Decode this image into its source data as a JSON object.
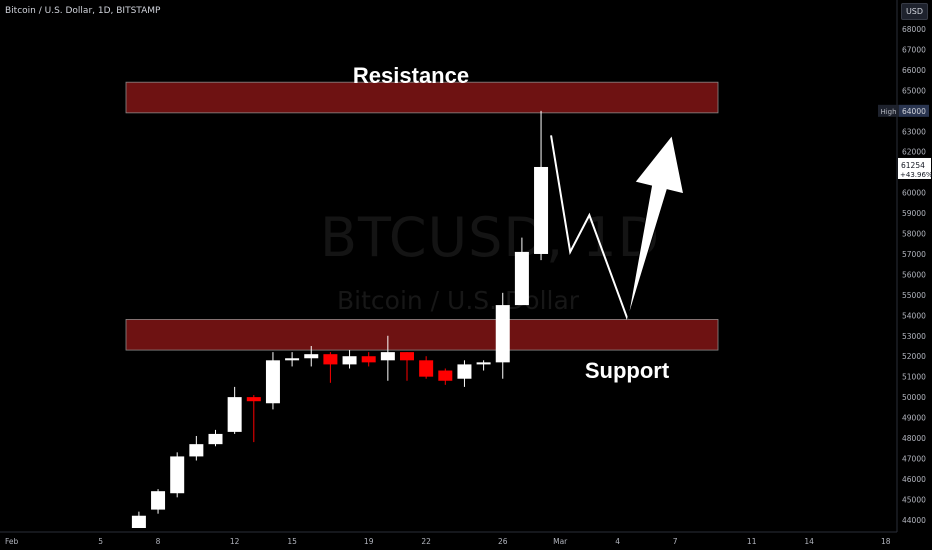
{
  "header": {
    "symbol_title": "Bitcoin / U.S. Dollar, 1D, BITSTAMP",
    "currency_label": "USD"
  },
  "watermark": {
    "symbol": "BTCUSD, 1D",
    "description": "Bitcoin / U.S. Dollar"
  },
  "annotations": {
    "resistance_label": "Resistance",
    "support_label": "Support",
    "resistance_zone": [
      63900,
      65400
    ],
    "support_zone": [
      52300,
      53800
    ],
    "zone_color": "#6e1212",
    "projection_path": [
      {
        "date": "2021-02-28",
        "price": 62800
      },
      {
        "date": "2021-03-01",
        "price": 57100
      },
      {
        "date": "2021-03-02",
        "price": 58900
      },
      {
        "date": "2021-03-04",
        "price": 53800
      }
    ],
    "arrow": {
      "from": {
        "date": "2021-03-04",
        "price": 53800
      },
      "to": {
        "date": "2021-03-06",
        "price": 62800
      }
    }
  },
  "price_scale": {
    "high_tag_label": "High",
    "high_tag_value": "64000",
    "last_price": "61254",
    "last_change": "+43.96%"
  },
  "chart_data": {
    "type": "candlestick",
    "title": "Bitcoin / U.S. Dollar, 1D, BITSTAMP",
    "ylim": [
      43600,
      69000
    ],
    "y_ticks": [
      44000,
      45000,
      46000,
      47000,
      48000,
      49000,
      50000,
      51000,
      52000,
      53000,
      54000,
      55000,
      56000,
      57000,
      58000,
      59000,
      60000,
      61000,
      62000,
      63000,
      64000,
      65000,
      66000,
      67000,
      68000
    ],
    "x_ticks": [
      {
        "label": "Feb",
        "date": "2021-02-01"
      },
      {
        "label": "5",
        "date": "2021-02-05"
      },
      {
        "label": "8",
        "date": "2021-02-08"
      },
      {
        "label": "12",
        "date": "2021-02-12"
      },
      {
        "label": "15",
        "date": "2021-02-15"
      },
      {
        "label": "19",
        "date": "2021-02-19"
      },
      {
        "label": "22",
        "date": "2021-02-22"
      },
      {
        "label": "26",
        "date": "2021-02-26"
      },
      {
        "label": "Mar",
        "date": "2021-03-01"
      },
      {
        "label": "4",
        "date": "2021-03-04"
      },
      {
        "label": "7",
        "date": "2021-03-07"
      },
      {
        "label": "11",
        "date": "2021-03-11"
      },
      {
        "label": "14",
        "date": "2021-03-14"
      },
      {
        "label": "18",
        "date": "2021-03-18"
      }
    ],
    "xlim": [
      "2021-02-01",
      "2021-03-18"
    ],
    "candles": [
      {
        "date": "2021-02-07",
        "open": 43600,
        "high": 44400,
        "low": 43600,
        "close": 44200
      },
      {
        "date": "2021-02-08",
        "open": 44500,
        "high": 45500,
        "low": 44300,
        "close": 45400
      },
      {
        "date": "2021-02-09",
        "open": 45300,
        "high": 47300,
        "low": 45100,
        "close": 47100
      },
      {
        "date": "2021-02-10",
        "open": 47100,
        "high": 48100,
        "low": 46900,
        "close": 47700
      },
      {
        "date": "2021-02-11",
        "open": 47700,
        "high": 48400,
        "low": 47600,
        "close": 48200
      },
      {
        "date": "2021-02-12",
        "open": 48300,
        "high": 50500,
        "low": 48200,
        "close": 50000
      },
      {
        "date": "2021-02-13",
        "open": 50000,
        "high": 50100,
        "low": 47800,
        "close": 49800
      },
      {
        "date": "2021-02-14",
        "open": 49700,
        "high": 52200,
        "low": 49400,
        "close": 51800
      },
      {
        "date": "2021-02-15",
        "open": 51800,
        "high": 52200,
        "low": 51500,
        "close": 51900
      },
      {
        "date": "2021-02-16",
        "open": 51900,
        "high": 52500,
        "low": 51500,
        "close": 52100
      },
      {
        "date": "2021-02-17",
        "open": 52100,
        "high": 52200,
        "low": 50700,
        "close": 51600
      },
      {
        "date": "2021-02-18",
        "open": 51600,
        "high": 52300,
        "low": 51400,
        "close": 52000
      },
      {
        "date": "2021-02-19",
        "open": 52000,
        "high": 52200,
        "low": 51500,
        "close": 51700
      },
      {
        "date": "2021-02-20",
        "open": 51800,
        "high": 53000,
        "low": 50800,
        "close": 52200
      },
      {
        "date": "2021-02-21",
        "open": 52200,
        "high": 52200,
        "low": 50800,
        "close": 51800
      },
      {
        "date": "2021-02-22",
        "open": 51800,
        "high": 52000,
        "low": 50900,
        "close": 51000
      },
      {
        "date": "2021-02-23",
        "open": 51300,
        "high": 51400,
        "low": 50600,
        "close": 50800
      },
      {
        "date": "2021-02-24",
        "open": 50900,
        "high": 51800,
        "low": 50500,
        "close": 51600
      },
      {
        "date": "2021-02-25",
        "open": 51600,
        "high": 51800,
        "low": 51300,
        "close": 51700
      },
      {
        "date": "2021-02-26",
        "open": 51700,
        "high": 55100,
        "low": 50900,
        "close": 54500
      },
      {
        "date": "2021-02-27",
        "open": 54500,
        "high": 57800,
        "low": 54500,
        "close": 57100
      },
      {
        "date": "2021-02-28",
        "open": 57000,
        "high": 64000,
        "low": 56700,
        "close": 61254
      }
    ],
    "up_color": "#ffffff",
    "down_color": "#ff0000",
    "grid": false
  }
}
